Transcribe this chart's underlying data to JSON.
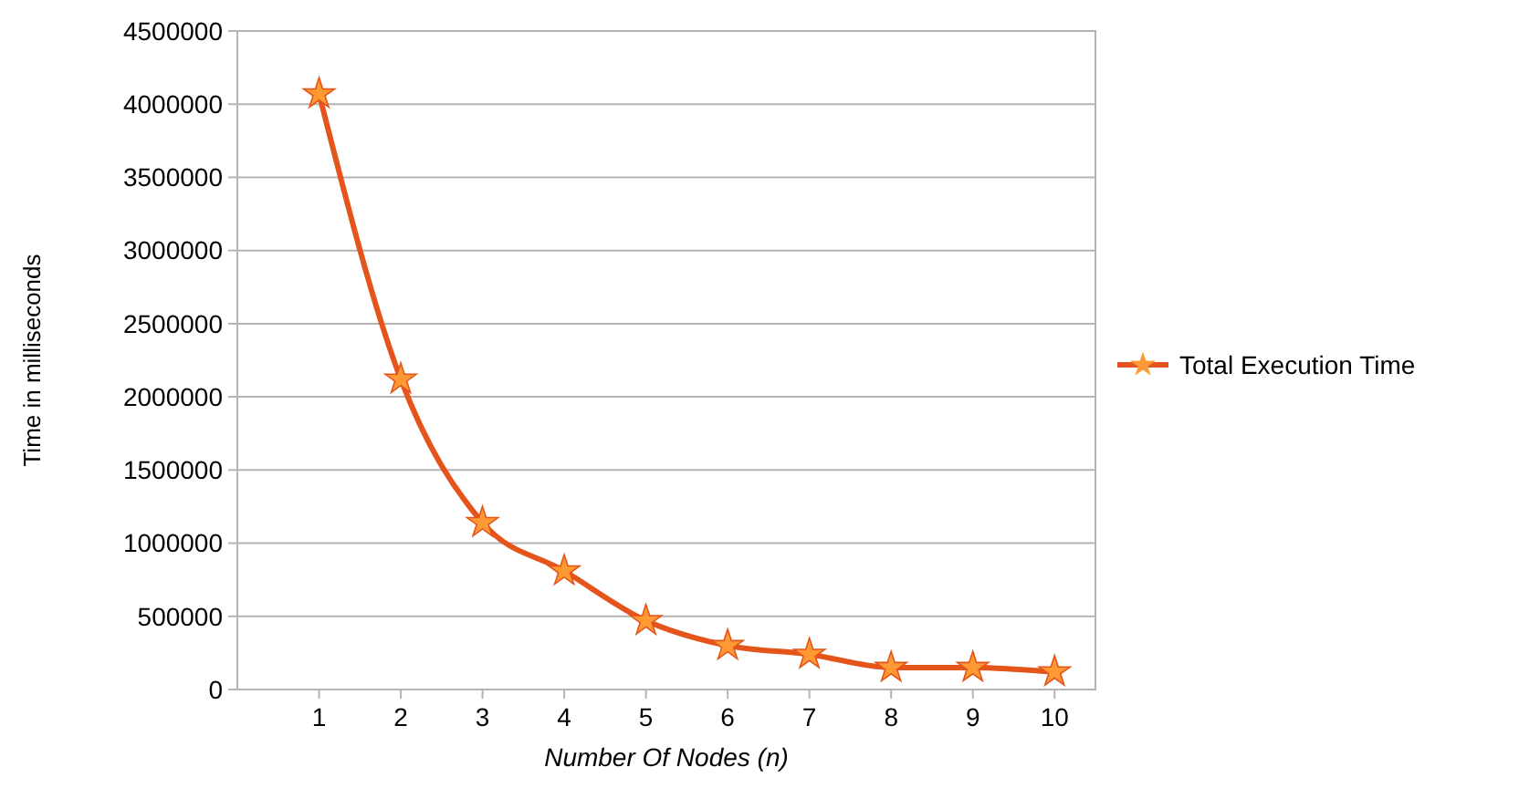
{
  "chart_data": {
    "type": "line",
    "xlabel": "Number Of Nodes (n)",
    "ylabel": "Time in milliseconds",
    "categories": [
      "1",
      "2",
      "3",
      "4",
      "5",
      "6",
      "7",
      "8",
      "9",
      "10"
    ],
    "series": [
      {
        "name": "Total Execution Time",
        "color": "#e4541b",
        "values": [
          4070000,
          2120000,
          1140000,
          810000,
          470000,
          300000,
          240000,
          150000,
          150000,
          120000
        ]
      }
    ],
    "ylim": [
      0,
      4500000
    ],
    "yticks": [
      0,
      500000,
      1000000,
      1500000,
      2000000,
      2500000,
      3000000,
      3500000,
      4000000,
      4500000
    ],
    "grid": "y",
    "legend": "right",
    "marker": "star",
    "line_style": "solid"
  }
}
